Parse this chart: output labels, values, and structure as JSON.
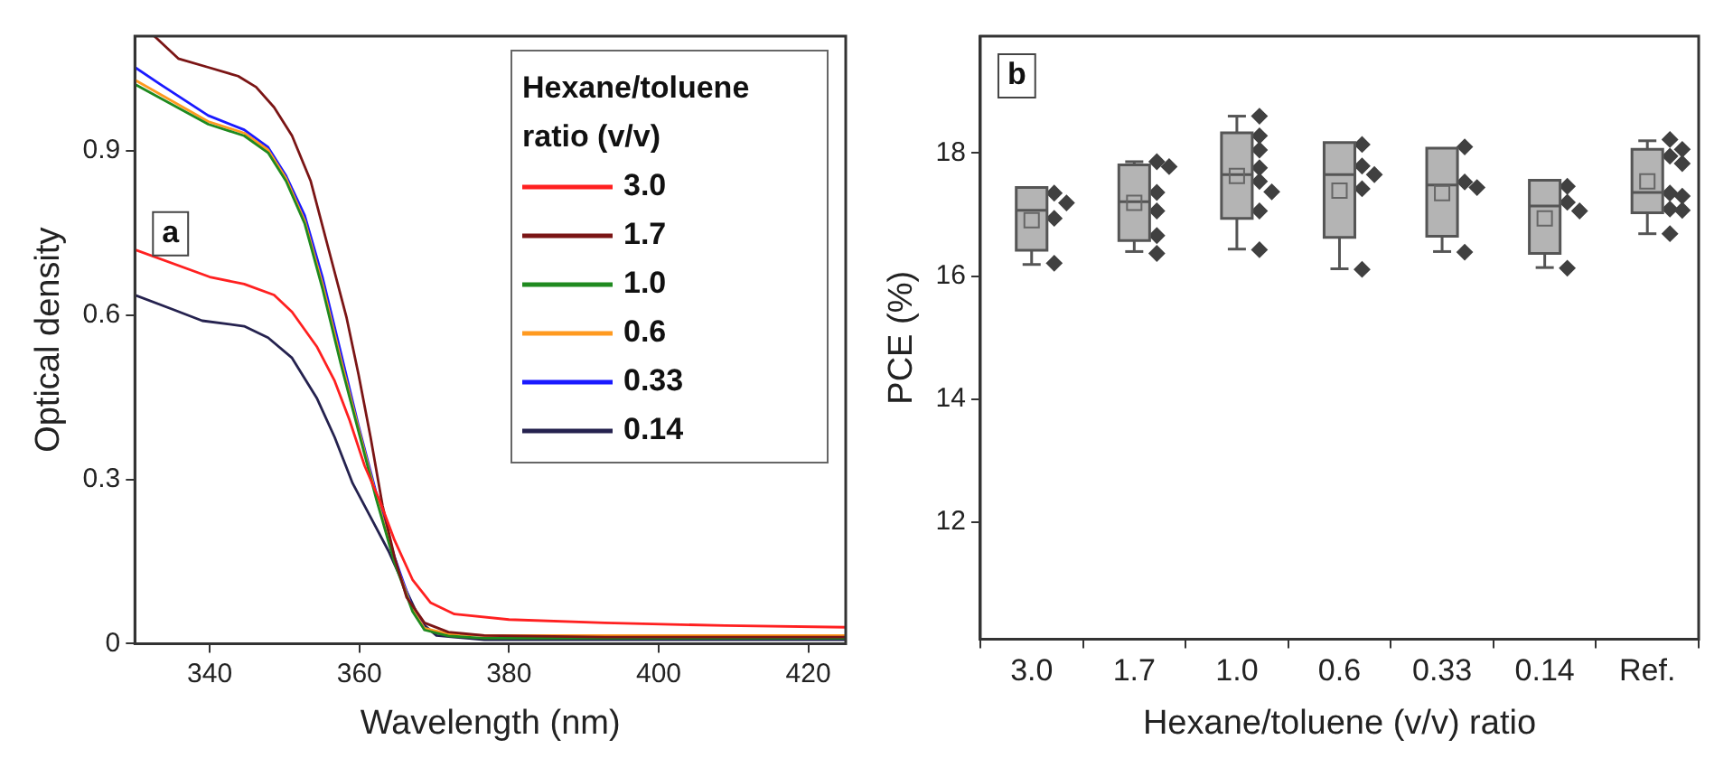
{
  "chart_data": [
    {
      "type": "line",
      "xlabel": "Wavelength (nm)",
      "ylabel": "Optical density",
      "legend_title": "Hexane/toluene ratio (v/v)",
      "annotations": [
        "a"
      ],
      "xlim": [
        330,
        425
      ],
      "ylim": [
        0,
        1.11
      ],
      "xticks": [
        340,
        360,
        380,
        400,
        420
      ],
      "yticks": [
        0.0,
        0.3,
        0.6,
        0.9
      ],
      "grid": false,
      "legend": "top right",
      "marker": "none",
      "line_style": "solid",
      "series": [
        {
          "name": "3.0",
          "color": "#ff2020",
          "x": [
            330,
            340,
            344.6,
            348.6,
            351,
            354.3,
            356.7,
            358.7,
            360.7,
            362.7,
            364.7,
            367.1,
            369.5,
            372.7,
            380,
            392.8,
            408.9,
            425
          ],
          "values": [
            0.72,
            0.67,
            0.657,
            0.637,
            0.606,
            0.543,
            0.48,
            0.408,
            0.325,
            0.262,
            0.189,
            0.117,
            0.075,
            0.054,
            0.044,
            0.038,
            0.033,
            0.03
          ]
        },
        {
          "name": "1.7",
          "color": "#7b1515",
          "x": [
            332.6,
            335.8,
            339.8,
            343.8,
            346.2,
            348.6,
            351,
            353.5,
            355.9,
            358.3,
            359.9,
            361.5,
            363.1,
            364.7,
            366.3,
            368.7,
            371.9,
            376.7,
            392.8,
            425
          ],
          "values": [
            1.11,
            1.069,
            1.053,
            1.037,
            1.017,
            0.98,
            0.928,
            0.845,
            0.72,
            0.595,
            0.491,
            0.377,
            0.252,
            0.158,
            0.085,
            0.038,
            0.021,
            0.015,
            0.012,
            0.012
          ]
        },
        {
          "name": "1.0",
          "color": "#1f8a1f",
          "x": [
            330,
            339.8,
            344.6,
            347.8,
            350.2,
            352.7,
            355.1,
            357.5,
            359.9,
            362.3,
            364.7,
            367.1,
            368.7,
            371.9,
            376.7,
            425
          ],
          "values": [
            1.022,
            0.949,
            0.928,
            0.897,
            0.845,
            0.767,
            0.647,
            0.512,
            0.387,
            0.262,
            0.148,
            0.059,
            0.025,
            0.014,
            0.01,
            0.01
          ]
        },
        {
          "name": "0.6",
          "color": "#ff9a20",
          "x": [
            330,
            339.8,
            344.6,
            347.8,
            350.2,
            352.7,
            355.1,
            357.5,
            359.9,
            362.3,
            364.7,
            367.1,
            368.7,
            371.9,
            376.7,
            425
          ],
          "values": [
            1.03,
            0.954,
            0.933,
            0.902,
            0.85,
            0.772,
            0.655,
            0.52,
            0.392,
            0.267,
            0.152,
            0.062,
            0.028,
            0.018,
            0.015,
            0.015
          ]
        },
        {
          "name": "0.33",
          "color": "#1a1aff",
          "x": [
            330,
            333.4,
            339.8,
            344.6,
            347.8,
            350.2,
            352.7,
            355.1,
            357.5,
            359.9,
            362.3,
            364.7,
            367.1,
            368.7
          ],
          "values": [
            1.053,
            1.022,
            0.965,
            0.939,
            0.907,
            0.855,
            0.782,
            0.668,
            0.533,
            0.397,
            0.273,
            0.158,
            0.065,
            0.028
          ]
        },
        {
          "name": "0.14",
          "color": "#25224f",
          "x": [
            330,
            335,
            339,
            344.6,
            347.8,
            351,
            354.3,
            356.7,
            359.1,
            361.5,
            363.9,
            366.3,
            368.3,
            370.3,
            376.7,
            425
          ],
          "values": [
            0.637,
            0.611,
            0.59,
            0.58,
            0.559,
            0.522,
            0.449,
            0.377,
            0.293,
            0.231,
            0.169,
            0.096,
            0.038,
            0.015,
            0.007,
            0.007
          ]
        }
      ]
    },
    {
      "type": "box",
      "xlabel": "Hexane/toluene (v/v) ratio",
      "ylabel": "PCE (%)",
      "annotations": [
        "b"
      ],
      "categories": [
        "3.0",
        "1.7",
        "1.0",
        "0.6",
        "0.33",
        "0.14",
        "Ref."
      ],
      "ylim": [
        10.1,
        19.9
      ],
      "yticks": [
        12,
        14,
        16,
        18
      ],
      "grid": false,
      "legend": false,
      "color": "#b4b4b4",
      "boxes": [
        {
          "low": 16.19,
          "q1": 16.42,
          "median": 17.07,
          "q3": 17.44,
          "high": 17.44,
          "mean": 16.91
        },
        {
          "low": 16.4,
          "q1": 16.58,
          "median": 17.21,
          "q3": 17.81,
          "high": 17.86,
          "mean": 17.19
        },
        {
          "low": 16.44,
          "q1": 16.94,
          "median": 17.65,
          "q3": 18.33,
          "high": 18.6,
          "mean": 17.63
        },
        {
          "low": 16.12,
          "q1": 16.63,
          "median": 17.65,
          "q3": 18.17,
          "high": 18.17,
          "mean": 17.39
        },
        {
          "low": 16.4,
          "q1": 16.65,
          "median": 17.48,
          "q3": 18.08,
          "high": 18.08,
          "mean": 17.35
        },
        {
          "low": 16.14,
          "q1": 16.37,
          "median": 17.14,
          "q3": 17.56,
          "high": 17.56,
          "mean": 16.94
        },
        {
          "low": 16.69,
          "q1": 17.03,
          "median": 17.36,
          "q3": 18.06,
          "high": 18.2,
          "mean": 17.54
        }
      ],
      "series": [
        {
          "type": "scatter",
          "color": "#404040",
          "marker": "diamond",
          "x": [
            "3.0",
            "3.0",
            "3.0",
            "3.0",
            "1.7",
            "1.7",
            "1.7",
            "1.7",
            "1.7",
            "1.7",
            "1.0",
            "1.0",
            "1.0",
            "1.0",
            "1.0",
            "1.0",
            "1.0",
            "1.0",
            "0.6",
            "0.6",
            "0.6",
            "0.6",
            "0.6",
            "0.33",
            "0.33",
            "0.33",
            "0.33",
            "0.14",
            "0.14",
            "0.14",
            "0.14",
            "Ref.",
            "Ref.",
            "Ref.",
            "Ref.",
            "Ref.",
            "Ref.",
            "Ref.",
            "Ref.",
            "Ref."
          ],
          "values": [
            17.35,
            17.19,
            16.94,
            16.21,
            17.86,
            17.78,
            17.36,
            17.06,
            16.66,
            16.37,
            18.6,
            18.28,
            18.05,
            17.76,
            17.54,
            17.37,
            17.06,
            16.43,
            18.14,
            17.79,
            17.65,
            17.42,
            16.11,
            18.1,
            17.53,
            17.44,
            16.39,
            17.46,
            17.2,
            17.06,
            16.13,
            18.22,
            18.06,
            17.95,
            17.83,
            17.35,
            17.3,
            17.09,
            17.07,
            16.69
          ]
        }
      ]
    }
  ]
}
